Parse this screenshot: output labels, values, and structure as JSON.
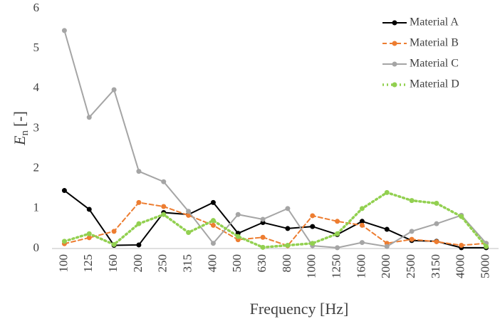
{
  "chart_data": {
    "type": "line",
    "x_label": "Frequency [Hz]",
    "y_label": {
      "symbol": "E",
      "subscript": "n",
      "unit": "[-]"
    },
    "categories": [
      "100",
      "125",
      "160",
      "200",
      "250",
      "315",
      "400",
      "500",
      "630",
      "800",
      "1000",
      "1250",
      "1600",
      "2000",
      "2500",
      "3150",
      "4000",
      "5000"
    ],
    "series": [
      {
        "name": "Material A",
        "color": "#000000",
        "style": "solid",
        "values": [
          1.45,
          0.98,
          0.08,
          0.09,
          0.9,
          0.85,
          1.15,
          0.38,
          0.65,
          0.5,
          0.55,
          0.35,
          0.68,
          0.48,
          0.2,
          0.18,
          0.02,
          0.02
        ]
      },
      {
        "name": "Material B",
        "color": "#ed7d31",
        "style": "dashed",
        "values": [
          0.12,
          0.27,
          0.43,
          1.15,
          1.05,
          0.83,
          0.58,
          0.22,
          0.28,
          0.07,
          0.82,
          0.68,
          0.58,
          0.13,
          0.23,
          0.17,
          0.08,
          0.13
        ]
      },
      {
        "name": "Material C",
        "color": "#a5a5a5",
        "style": "solid",
        "values": [
          5.45,
          3.28,
          3.97,
          1.93,
          1.67,
          0.93,
          0.13,
          0.85,
          0.73,
          1.0,
          0.07,
          0.02,
          0.15,
          0.05,
          0.43,
          0.62,
          0.83,
          0.13
        ]
      },
      {
        "name": "Material D",
        "color": "#92d050",
        "style": "dotted",
        "values": [
          0.18,
          0.37,
          0.1,
          0.62,
          0.85,
          0.4,
          0.7,
          0.3,
          0.03,
          0.08,
          0.13,
          0.37,
          1.0,
          1.4,
          1.2,
          1.13,
          0.8,
          0.05
        ]
      }
    ],
    "ylim": [
      0,
      6
    ],
    "yticks": [
      0,
      1,
      2,
      3,
      4,
      5,
      6
    ],
    "grid": false,
    "legend": "upper right"
  }
}
